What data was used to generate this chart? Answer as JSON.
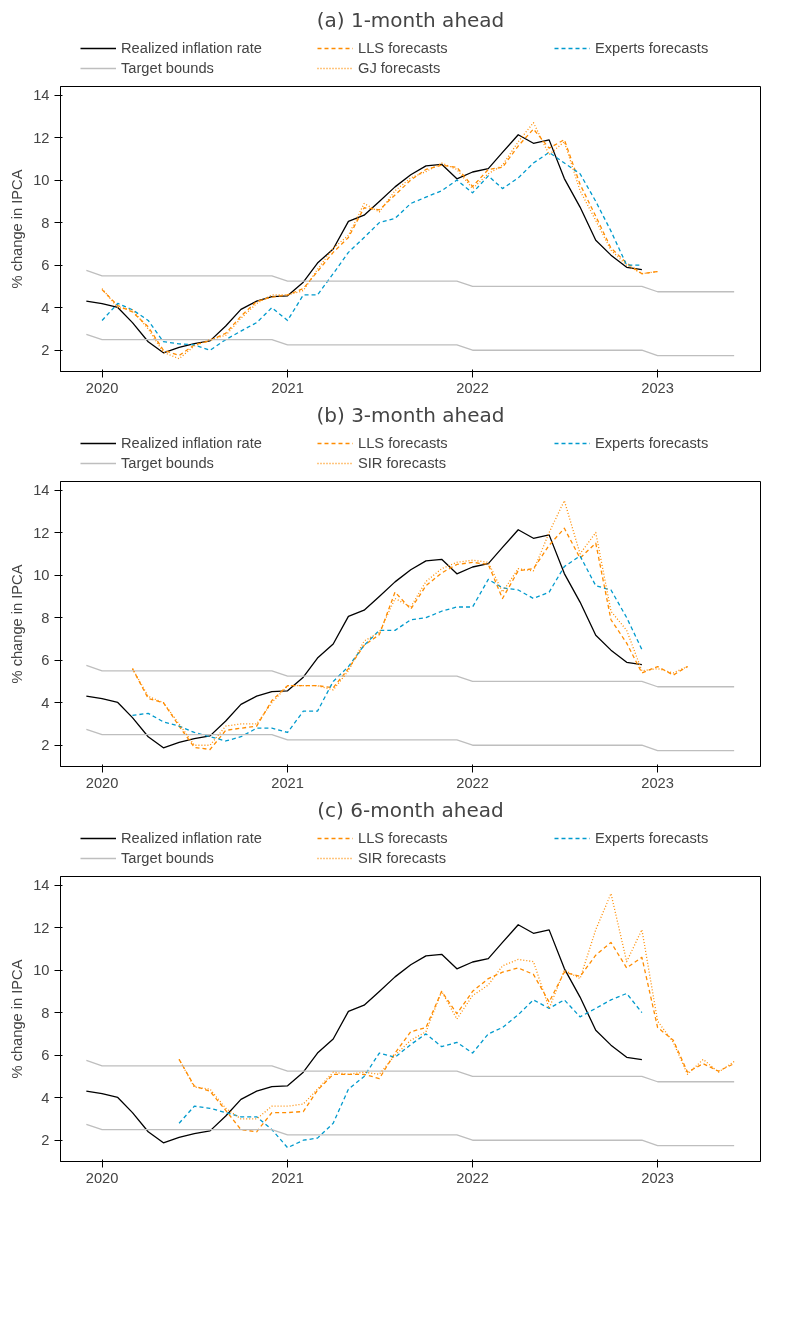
{
  "chart_data": [
    {
      "type": "line",
      "title": "(a) 1-month ahead",
      "ylabel": "% change in IPCA",
      "xlim": [
        "2019-10-11",
        "2023-07-23"
      ],
      "xticks": [
        "2020",
        "2021",
        "2022",
        "2023"
      ],
      "ylim": [
        1.0,
        14.4
      ],
      "yticks": [
        2,
        4,
        6,
        8,
        10,
        12,
        14
      ],
      "grid": false,
      "legend": "top",
      "x": [
        "2019-12",
        "2020-01",
        "2020-02",
        "2020-03",
        "2020-04",
        "2020-05",
        "2020-06",
        "2020-07",
        "2020-08",
        "2020-09",
        "2020-10",
        "2020-11",
        "2020-12",
        "2021-01",
        "2021-02",
        "2021-03",
        "2021-04",
        "2021-05",
        "2021-06",
        "2021-07",
        "2021-08",
        "2021-09",
        "2021-10",
        "2021-11",
        "2021-12",
        "2022-01",
        "2022-02",
        "2022-03",
        "2022-04",
        "2022-05",
        "2022-06",
        "2022-07",
        "2022-08",
        "2022-09",
        "2022-10",
        "2022-11",
        "2022-12",
        "2023-01",
        "2023-02",
        "2023-03",
        "2023-04",
        "2023-05",
        "2023-06"
      ],
      "series": [
        {
          "name": "Realized inflation rate",
          "color": "#000000",
          "line_style": "solid",
          "values": [
            4.31,
            4.19,
            4.01,
            3.3,
            2.4,
            1.88,
            2.13,
            2.31,
            2.44,
            3.14,
            3.92,
            4.31,
            4.52,
            4.56,
            5.2,
            6.1,
            6.76,
            8.06,
            8.35,
            8.99,
            9.68,
            10.25,
            10.67,
            10.74,
            10.06,
            10.38,
            10.54,
            11.3,
            12.13,
            11.73,
            11.89,
            10.07,
            8.73,
            7.17,
            6.47,
            5.9,
            5.79,
            null,
            null,
            null,
            null,
            null,
            null
          ]
        },
        {
          "name": "LLS forecasts",
          "color": "#ff8c00",
          "line_style": "dashed",
          "values": [
            null,
            4.85,
            4.1,
            3.8,
            3.1,
            2.0,
            1.75,
            2.25,
            2.45,
            2.8,
            3.6,
            4.3,
            4.5,
            4.6,
            4.9,
            5.7,
            6.6,
            7.3,
            8.7,
            8.6,
            9.3,
            10.0,
            10.5,
            10.7,
            10.6,
            9.7,
            10.5,
            10.6,
            11.6,
            12.4,
            11.5,
            11.9,
            9.8,
            8.3,
            6.8,
            6.1,
            5.6,
            5.7,
            null,
            null,
            null,
            null,
            null
          ]
        },
        {
          "name": "Experts forecasts",
          "color": "#009acd",
          "line_style": "dashed",
          "values": [
            null,
            3.4,
            4.2,
            3.9,
            3.4,
            2.4,
            2.3,
            2.25,
            2.0,
            2.5,
            2.9,
            3.3,
            4.0,
            3.4,
            4.6,
            4.6,
            5.6,
            6.6,
            7.3,
            8.0,
            8.2,
            8.9,
            9.2,
            9.5,
            10.0,
            9.4,
            10.2,
            9.6,
            10.1,
            10.8,
            11.3,
            10.8,
            10.3,
            9.0,
            7.6,
            6.0,
            6.0,
            null,
            null,
            null,
            null,
            null,
            null
          ]
        },
        {
          "name": "Target bounds",
          "color": "#bebebe",
          "line_style": "solid",
          "values": [
            5.75,
            5.5,
            5.5,
            5.5,
            5.5,
            5.5,
            5.5,
            5.5,
            5.5,
            5.5,
            5.5,
            5.5,
            5.5,
            5.25,
            5.25,
            5.25,
            5.25,
            5.25,
            5.25,
            5.25,
            5.25,
            5.25,
            5.25,
            5.25,
            5.25,
            5.0,
            5.0,
            5.0,
            5.0,
            5.0,
            5.0,
            5.0,
            5.0,
            5.0,
            5.0,
            5.0,
            5.0,
            4.75,
            4.75,
            4.75,
            4.75,
            4.75,
            4.75
          ]
        },
        {
          "color": "#bebebe",
          "line_style": "solid",
          "values": [
            2.75,
            2.5,
            2.5,
            2.5,
            2.5,
            2.5,
            2.5,
            2.5,
            2.5,
            2.5,
            2.5,
            2.5,
            2.5,
            2.25,
            2.25,
            2.25,
            2.25,
            2.25,
            2.25,
            2.25,
            2.25,
            2.25,
            2.25,
            2.25,
            2.25,
            2.0,
            2.0,
            2.0,
            2.0,
            2.0,
            2.0,
            2.0,
            2.0,
            2.0,
            2.0,
            2.0,
            2.0,
            1.75,
            1.75,
            1.75,
            1.75,
            1.75,
            1.75
          ]
        },
        {
          "name": "GJ forecasts",
          "color": "#ff8c00",
          "line_style": "dotted",
          "values": [
            null,
            4.9,
            4.0,
            3.9,
            3.0,
            1.9,
            1.6,
            2.2,
            2.5,
            2.7,
            3.5,
            4.2,
            4.6,
            4.6,
            4.8,
            5.8,
            6.8,
            7.4,
            8.9,
            8.5,
            9.5,
            10.1,
            10.4,
            10.8,
            10.5,
            9.6,
            10.3,
            10.7,
            11.8,
            12.7,
            11.2,
            11.8,
            9.5,
            8.1,
            6.7,
            6.0,
            5.6,
            5.7,
            null,
            null,
            null,
            null,
            null
          ]
        }
      ]
    },
    {
      "type": "line",
      "title": "(b) 3-month ahead",
      "ylabel": "% change in IPCA",
      "xlim": [
        "2019-10-11",
        "2023-07-23"
      ],
      "xticks": [
        "2020",
        "2021",
        "2022",
        "2023"
      ],
      "ylim": [
        1.0,
        14.4
      ],
      "yticks": [
        2,
        4,
        6,
        8,
        10,
        12,
        14
      ],
      "grid": false,
      "legend": "top",
      "x": [
        "2019-12",
        "2020-01",
        "2020-02",
        "2020-03",
        "2020-04",
        "2020-05",
        "2020-06",
        "2020-07",
        "2020-08",
        "2020-09",
        "2020-10",
        "2020-11",
        "2020-12",
        "2021-01",
        "2021-02",
        "2021-03",
        "2021-04",
        "2021-05",
        "2021-06",
        "2021-07",
        "2021-08",
        "2021-09",
        "2021-10",
        "2021-11",
        "2021-12",
        "2022-01",
        "2022-02",
        "2022-03",
        "2022-04",
        "2022-05",
        "2022-06",
        "2022-07",
        "2022-08",
        "2022-09",
        "2022-10",
        "2022-11",
        "2022-12",
        "2023-01",
        "2023-02",
        "2023-03",
        "2023-04",
        "2023-05",
        "2023-06"
      ],
      "series": [
        {
          "name": "Realized inflation rate",
          "color": "#000000",
          "line_style": "solid",
          "values": [
            4.31,
            4.19,
            4.01,
            3.3,
            2.4,
            1.88,
            2.13,
            2.31,
            2.44,
            3.14,
            3.92,
            4.31,
            4.52,
            4.56,
            5.2,
            6.1,
            6.76,
            8.06,
            8.35,
            8.99,
            9.68,
            10.25,
            10.67,
            10.74,
            10.06,
            10.38,
            10.54,
            11.3,
            12.13,
            11.73,
            11.89,
            10.07,
            8.73,
            7.17,
            6.47,
            5.9,
            5.79,
            null,
            null,
            null,
            null,
            null,
            null
          ]
        },
        {
          "name": "LLS forecasts",
          "color": "#ff8c00",
          "line_style": "dashed",
          "values": [
            null,
            null,
            null,
            5.6,
            4.2,
            4.0,
            2.9,
            1.9,
            1.8,
            2.7,
            2.8,
            2.9,
            4.1,
            4.8,
            4.8,
            4.8,
            4.7,
            5.6,
            6.7,
            7.2,
            9.2,
            8.4,
            9.5,
            10.1,
            10.5,
            10.6,
            10.5,
            8.9,
            10.2,
            10.3,
            11.4,
            12.2,
            10.8,
            11.5,
            7.9,
            6.8,
            5.4,
            5.7,
            5.3,
            5.7,
            null,
            null,
            null
          ]
        },
        {
          "name": "Experts forecasts",
          "color": "#009acd",
          "line_style": "dashed",
          "values": [
            null,
            null,
            null,
            3.4,
            3.5,
            3.1,
            2.9,
            2.6,
            2.4,
            2.2,
            2.4,
            2.8,
            2.8,
            2.6,
            3.6,
            3.6,
            5.0,
            5.7,
            6.7,
            7.4,
            7.4,
            7.9,
            8.0,
            8.3,
            8.5,
            8.5,
            9.8,
            9.4,
            9.3,
            8.9,
            9.2,
            10.4,
            10.9,
            9.5,
            9.3,
            8.0,
            6.5,
            null,
            null,
            null,
            null,
            null,
            null
          ]
        },
        {
          "name": "Target bounds",
          "color": "#bebebe",
          "line_style": "solid",
          "values": [
            5.75,
            5.5,
            5.5,
            5.5,
            5.5,
            5.5,
            5.5,
            5.5,
            5.5,
            5.5,
            5.5,
            5.5,
            5.5,
            5.25,
            5.25,
            5.25,
            5.25,
            5.25,
            5.25,
            5.25,
            5.25,
            5.25,
            5.25,
            5.25,
            5.25,
            5.0,
            5.0,
            5.0,
            5.0,
            5.0,
            5.0,
            5.0,
            5.0,
            5.0,
            5.0,
            5.0,
            5.0,
            4.75,
            4.75,
            4.75,
            4.75,
            4.75,
            4.75
          ]
        },
        {
          "color": "#bebebe",
          "line_style": "solid",
          "values": [
            2.75,
            2.5,
            2.5,
            2.5,
            2.5,
            2.5,
            2.5,
            2.5,
            2.5,
            2.5,
            2.5,
            2.5,
            2.5,
            2.25,
            2.25,
            2.25,
            2.25,
            2.25,
            2.25,
            2.25,
            2.25,
            2.25,
            2.25,
            2.25,
            2.25,
            2.0,
            2.0,
            2.0,
            2.0,
            2.0,
            2.0,
            2.0,
            2.0,
            2.0,
            2.0,
            2.0,
            2.0,
            1.75,
            1.75,
            1.75,
            1.75,
            1.75,
            1.75
          ]
        },
        {
          "name": "SIR forecasts",
          "color": "#ff8c00",
          "line_style": "dotted",
          "values": [
            null,
            null,
            null,
            5.6,
            4.3,
            4.0,
            3.0,
            2.0,
            2.0,
            2.9,
            3.0,
            3.0,
            4.0,
            4.8,
            4.8,
            4.8,
            4.6,
            5.5,
            6.9,
            7.3,
            8.9,
            8.5,
            9.7,
            10.3,
            10.6,
            10.7,
            10.6,
            9.2,
            10.3,
            10.2,
            12.0,
            13.5,
            11.0,
            12.0,
            8.3,
            7.4,
            5.5,
            5.6,
            5.4,
            5.7,
            null,
            null,
            null
          ]
        }
      ]
    },
    {
      "type": "line",
      "title": "(c) 6-month ahead",
      "ylabel": "% change in IPCA",
      "xlim": [
        "2019-10-11",
        "2023-07-23"
      ],
      "xticks": [
        "2020",
        "2021",
        "2022",
        "2023"
      ],
      "ylim": [
        1.0,
        14.4
      ],
      "yticks": [
        2,
        4,
        6,
        8,
        10,
        12,
        14
      ],
      "grid": false,
      "legend": "top",
      "x": [
        "2019-12",
        "2020-01",
        "2020-02",
        "2020-03",
        "2020-04",
        "2020-05",
        "2020-06",
        "2020-07",
        "2020-08",
        "2020-09",
        "2020-10",
        "2020-11",
        "2020-12",
        "2021-01",
        "2021-02",
        "2021-03",
        "2021-04",
        "2021-05",
        "2021-06",
        "2021-07",
        "2021-08",
        "2021-09",
        "2021-10",
        "2021-11",
        "2021-12",
        "2022-01",
        "2022-02",
        "2022-03",
        "2022-04",
        "2022-05",
        "2022-06",
        "2022-07",
        "2022-08",
        "2022-09",
        "2022-10",
        "2022-11",
        "2022-12",
        "2023-01",
        "2023-02",
        "2023-03",
        "2023-04",
        "2023-05",
        "2023-06"
      ],
      "series": [
        {
          "name": "Realized inflation rate",
          "color": "#000000",
          "line_style": "solid",
          "values": [
            4.31,
            4.19,
            4.01,
            3.3,
            2.4,
            1.88,
            2.13,
            2.31,
            2.44,
            3.14,
            3.92,
            4.31,
            4.52,
            4.56,
            5.2,
            6.1,
            6.76,
            8.06,
            8.35,
            8.99,
            9.68,
            10.25,
            10.67,
            10.74,
            10.06,
            10.38,
            10.54,
            11.3,
            12.13,
            11.73,
            11.89,
            10.07,
            8.73,
            7.17,
            6.47,
            5.9,
            5.79,
            null,
            null,
            null,
            null,
            null,
            null
          ]
        },
        {
          "name": "LLS forecasts",
          "color": "#ff8c00",
          "line_style": "dashed",
          "values": [
            null,
            null,
            null,
            null,
            null,
            null,
            5.8,
            4.55,
            4.3,
            3.4,
            2.5,
            2.4,
            3.3,
            3.3,
            3.35,
            4.35,
            5.1,
            5.1,
            5.1,
            4.9,
            6.1,
            7.1,
            7.3,
            9.0,
            7.95,
            9.0,
            9.6,
            9.9,
            10.1,
            9.8,
            8.5,
            9.9,
            9.7,
            10.7,
            11.3,
            10.1,
            10.6,
            7.3,
            6.7,
            5.2,
            5.6,
            5.25,
            5.6
          ]
        },
        {
          "name": "Experts forecasts",
          "color": "#009acd",
          "line_style": "dashed",
          "values": [
            null,
            null,
            null,
            null,
            null,
            null,
            2.8,
            3.6,
            3.5,
            3.3,
            3.1,
            3.1,
            2.5,
            1.65,
            2.0,
            2.1,
            2.8,
            4.4,
            5.0,
            6.1,
            5.9,
            6.5,
            7.0,
            6.4,
            6.6,
            6.1,
            7.0,
            7.3,
            7.9,
            8.6,
            8.2,
            8.6,
            7.8,
            8.2,
            8.6,
            8.9,
            8.0,
            null,
            null,
            null,
            null,
            null,
            null
          ]
        },
        {
          "name": "Target bounds",
          "color": "#bebebe",
          "line_style": "solid",
          "values": [
            5.75,
            5.5,
            5.5,
            5.5,
            5.5,
            5.5,
            5.5,
            5.5,
            5.5,
            5.5,
            5.5,
            5.5,
            5.5,
            5.25,
            5.25,
            5.25,
            5.25,
            5.25,
            5.25,
            5.25,
            5.25,
            5.25,
            5.25,
            5.25,
            5.25,
            5.0,
            5.0,
            5.0,
            5.0,
            5.0,
            5.0,
            5.0,
            5.0,
            5.0,
            5.0,
            5.0,
            5.0,
            4.75,
            4.75,
            4.75,
            4.75,
            4.75,
            4.75
          ]
        },
        {
          "color": "#bebebe",
          "line_style": "solid",
          "values": [
            2.75,
            2.5,
            2.5,
            2.5,
            2.5,
            2.5,
            2.5,
            2.5,
            2.5,
            2.5,
            2.5,
            2.5,
            2.5,
            2.25,
            2.25,
            2.25,
            2.25,
            2.25,
            2.25,
            2.25,
            2.25,
            2.25,
            2.25,
            2.25,
            2.25,
            2.0,
            2.0,
            2.0,
            2.0,
            2.0,
            2.0,
            2.0,
            2.0,
            2.0,
            2.0,
            2.0,
            2.0,
            1.75,
            1.75,
            1.75,
            1.75,
            1.75,
            1.75
          ]
        },
        {
          "name": "SIR forecasts",
          "color": "#ff8c00",
          "line_style": "dotted",
          "values": [
            null,
            null,
            null,
            null,
            null,
            null,
            5.8,
            4.5,
            4.4,
            3.5,
            3.0,
            3.0,
            3.6,
            3.6,
            3.7,
            4.4,
            5.2,
            5.1,
            5.2,
            5.1,
            6.0,
            6.7,
            7.1,
            9.0,
            7.7,
            8.8,
            9.3,
            10.2,
            10.5,
            10.4,
            8.2,
            10.0,
            9.6,
            11.9,
            13.6,
            10.4,
            11.9,
            7.6,
            6.6,
            5.1,
            5.8,
            5.2,
            5.7
          ]
        }
      ]
    }
  ]
}
